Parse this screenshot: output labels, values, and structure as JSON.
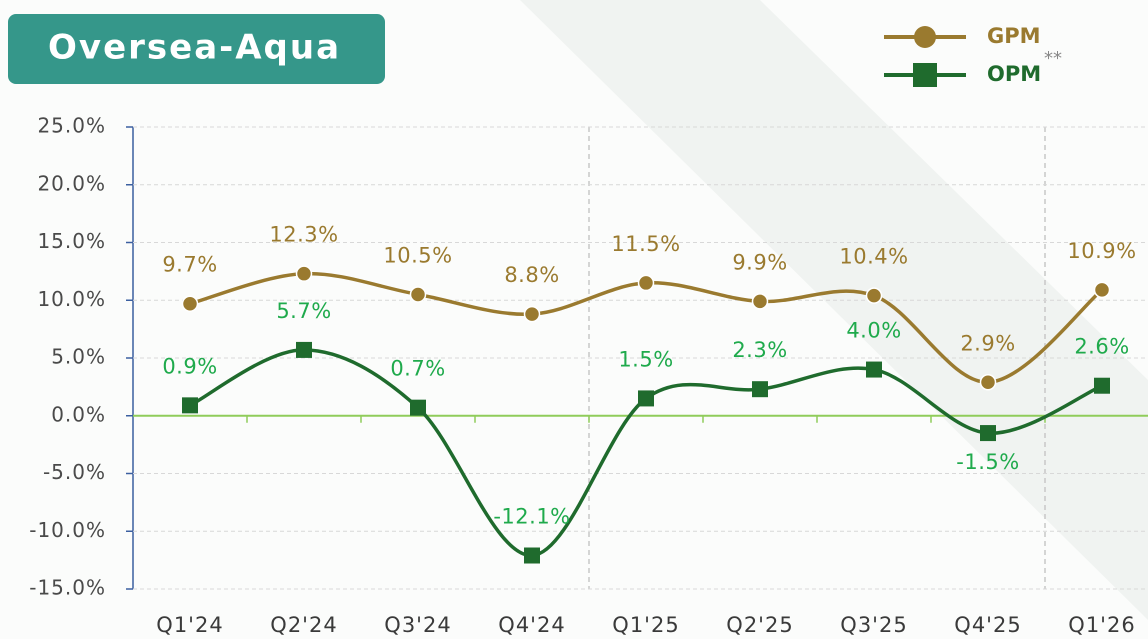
{
  "chart_data": {
    "type": "line",
    "title": "Oversea-Aqua",
    "categories": [
      "Q1'24",
      "Q2'24",
      "Q3'24",
      "Q4'24",
      "Q1'25",
      "Q2'25",
      "Q3'25",
      "Q4'25",
      "Q1'26"
    ],
    "series": [
      {
        "name": "GPM",
        "color": "#9a7a2f",
        "label_color": "#9a7a2f",
        "marker": "circle",
        "values": [
          9.7,
          12.3,
          10.5,
          8.8,
          11.5,
          9.9,
          10.4,
          2.9,
          10.9
        ],
        "value_labels": [
          "9.7%",
          "12.3%",
          "10.5%",
          "8.8%",
          "11.5%",
          "9.9%",
          "10.4%",
          "2.9%",
          "10.9%"
        ]
      },
      {
        "name": "OPM",
        "note": "**",
        "color": "#1f6b2d",
        "label_color": "#1faa4c",
        "marker": "square",
        "values": [
          0.9,
          5.7,
          0.7,
          -12.1,
          1.5,
          2.3,
          4.0,
          -1.5,
          2.6
        ],
        "value_labels": [
          "0.9%",
          "5.7%",
          "0.7%",
          "-12.1%",
          "1.5%",
          "2.3%",
          "4.0%",
          "-1.5%",
          "2.6%"
        ]
      }
    ],
    "ylim": [
      -15,
      25
    ],
    "yticks": [
      {
        "value": -15,
        "label": "-15.0%"
      },
      {
        "value": -10,
        "label": "-10.0%"
      },
      {
        "value": -5,
        "label": "-5.0%"
      },
      {
        "value": 0,
        "label": "0.0%"
      },
      {
        "value": 5,
        "label": "5.0%"
      },
      {
        "value": 10,
        "label": "10.0%"
      },
      {
        "value": 15,
        "label": "15.0%"
      },
      {
        "value": 20,
        "label": "20.0%"
      },
      {
        "value": 25,
        "label": "25.0%"
      }
    ],
    "grid": true
  }
}
